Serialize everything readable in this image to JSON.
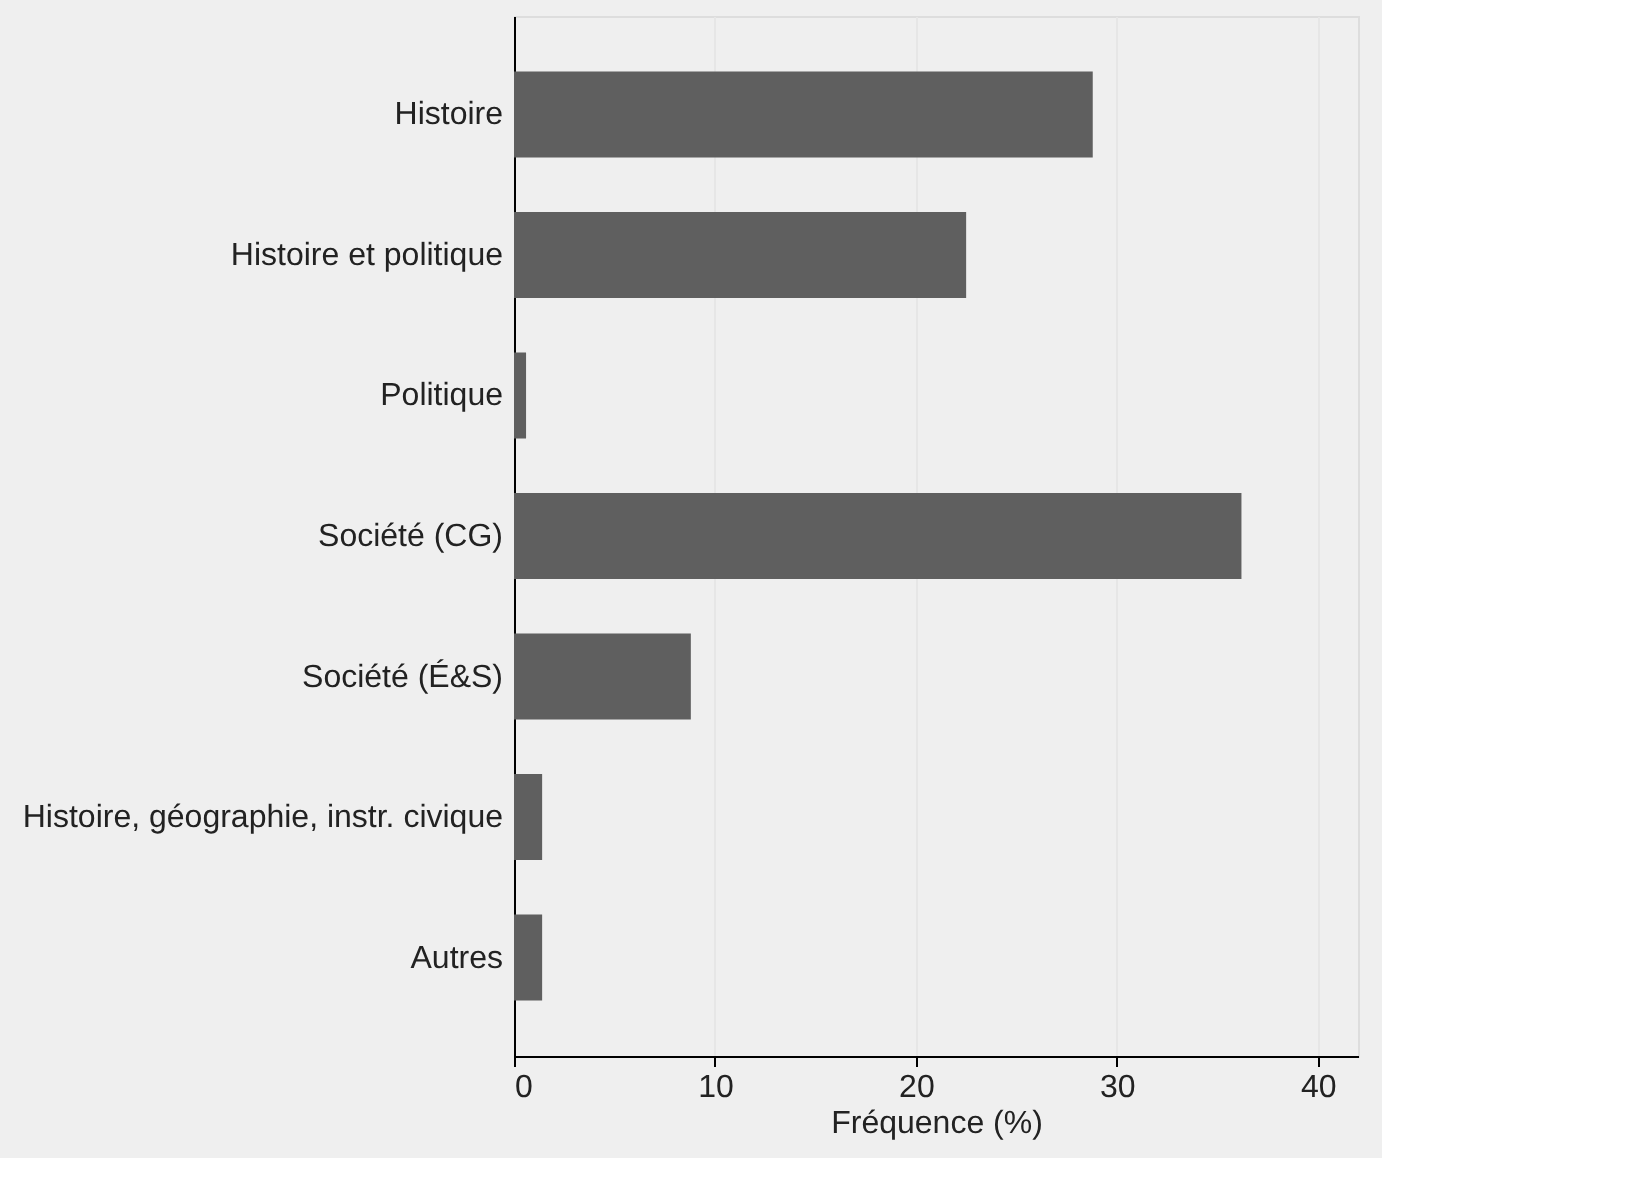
{
  "chart_data": {
    "type": "bar",
    "orientation": "horizontal",
    "xlabel": "Fréquence (%)",
    "categories": [
      "Histoire",
      "Histoire et politique",
      "Politique",
      "Société (CG)",
      "Société (É&S)",
      "Histoire, géographie, instr. civique",
      "Autres"
    ],
    "values": [
      28.8,
      22.5,
      0.6,
      36.2,
      8.8,
      1.4,
      1.4
    ],
    "color": "#5f5f5f",
    "xlim": [
      0,
      42
    ],
    "xticks": [
      0,
      10,
      20,
      30,
      40
    ],
    "grid": "x"
  }
}
